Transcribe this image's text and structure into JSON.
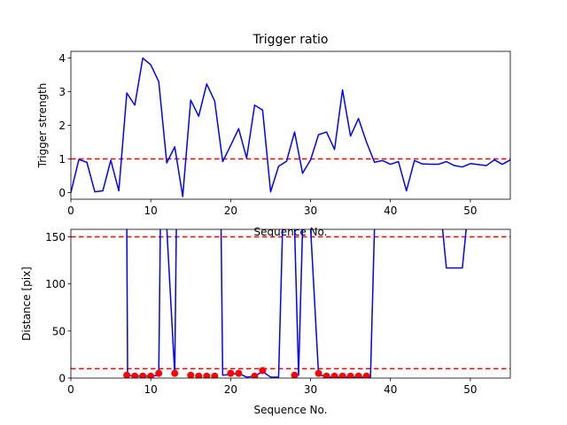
{
  "chart_data": [
    {
      "type": "line",
      "title": "Trigger ratio",
      "xlabel": "Sequence No.",
      "ylabel": "Trigger strength",
      "xlim": [
        0,
        55
      ],
      "ylim": [
        -0.2,
        4.2
      ],
      "xticks": [
        0,
        10,
        20,
        30,
        40,
        50
      ],
      "yticks": [
        0,
        1,
        2,
        3,
        4
      ],
      "grid": false,
      "series": [
        {
          "style": "solid",
          "color": "#0000ff",
          "x": [
            0,
            1,
            2,
            3,
            4,
            5,
            6,
            7,
            8,
            9,
            10,
            11,
            12,
            13,
            14,
            15,
            16,
            17,
            18,
            19,
            20,
            21,
            22,
            23,
            24,
            25,
            26,
            27,
            28,
            29,
            30,
            31,
            32,
            33,
            34,
            35,
            36,
            37,
            38,
            39,
            40,
            41,
            42,
            43,
            44,
            45,
            46,
            47,
            48,
            49,
            50,
            51,
            52,
            53,
            54,
            55
          ],
          "y": [
            0.0,
            0.98,
            0.9,
            0.02,
            0.05,
            0.96,
            0.05,
            2.96,
            2.6,
            4.0,
            3.8,
            3.3,
            0.88,
            1.36,
            -0.12,
            2.75,
            2.27,
            3.23,
            2.72,
            0.92,
            1.4,
            1.9,
            1.02,
            2.6,
            2.45,
            0.02,
            0.78,
            0.93,
            1.8,
            0.57,
            0.97,
            1.72,
            1.8,
            1.28,
            3.05,
            1.68,
            2.2,
            1.5,
            0.9,
            0.95,
            0.84,
            0.92,
            0.05,
            0.95,
            0.85,
            0.84,
            0.84,
            0.92,
            0.8,
            0.76,
            0.86,
            0.83,
            0.8,
            0.97,
            0.84,
            0.97
          ]
        }
      ],
      "hlines": [
        {
          "y": 1.0,
          "color": "#ff0000",
          "style": "dashed"
        }
      ]
    },
    {
      "type": "line",
      "title": "",
      "xlabel": "Sequence No.",
      "ylabel": "Distance [pix]",
      "xlim": [
        0,
        55
      ],
      "ylim": [
        0,
        158
      ],
      "xticks": [
        0,
        10,
        20,
        30,
        40,
        50
      ],
      "yticks": [
        0,
        50,
        100,
        150
      ],
      "grid": false,
      "series": [
        {
          "style": "solid",
          "color": "#0000ff",
          "x": [
            7,
            7.1,
            8,
            9,
            10,
            11,
            11.2,
            12,
            13,
            13.2,
            18.8,
            19,
            20,
            21,
            22,
            23,
            24,
            25,
            26,
            26.5,
            28,
            28.5,
            29,
            30,
            31,
            32,
            33,
            34,
            35,
            36,
            37,
            37.5,
            38,
            46.5,
            47,
            48,
            49,
            49.5
          ],
          "y": [
            160,
            3,
            2,
            2,
            2,
            3,
            160,
            160,
            4,
            160,
            160,
            3,
            4,
            5,
            1,
            2,
            7,
            1,
            1,
            160,
            160,
            3,
            160,
            160,
            4,
            1,
            1,
            1,
            1,
            1,
            1,
            1,
            160,
            160,
            117,
            117,
            117,
            160
          ]
        },
        {
          "style": "markers",
          "color": "#ff0000",
          "x": [
            7,
            8,
            9,
            10,
            11,
            13,
            15,
            16,
            17,
            18,
            20,
            21,
            23,
            24,
            28,
            31,
            32,
            33,
            34,
            35,
            36,
            37
          ],
          "y": [
            3,
            2,
            2,
            2,
            5,
            5,
            3,
            2,
            2,
            2,
            5,
            5,
            2,
            8,
            3,
            5,
            2,
            2,
            2,
            2,
            2,
            2
          ]
        }
      ],
      "hlines": [
        {
          "y": 150,
          "color": "#ff0000",
          "style": "dashed"
        },
        {
          "y": 10,
          "color": "#ff0000",
          "style": "dashed"
        }
      ]
    }
  ]
}
